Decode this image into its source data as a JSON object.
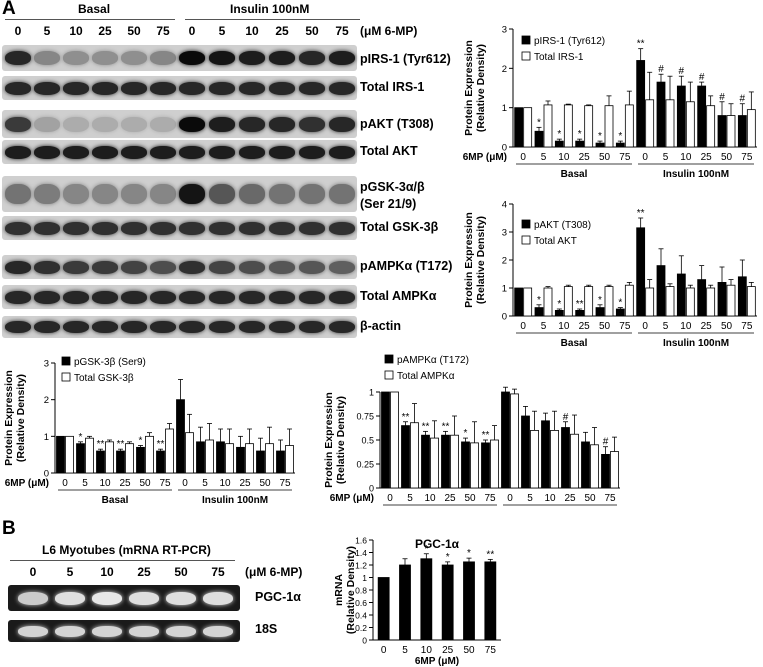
{
  "panel_a": {
    "letter": "A",
    "basal_label": "Basal",
    "insulin_label": "Insulin 100nM",
    "unit_label": "(μM 6-MP)",
    "lanes": [
      "0",
      "5",
      "10",
      "25",
      "50",
      "75",
      "0",
      "5",
      "10",
      "25",
      "50",
      "75"
    ],
    "blots": [
      {
        "label": "pIRS-1 (Tyr612)",
        "label2": "",
        "basal": [
          0.85,
          0.35,
          0.3,
          0.3,
          0.3,
          0.35
        ],
        "insulin": [
          1,
          0.95,
          0.9,
          0.9,
          0.85,
          0.9
        ]
      },
      {
        "label": "Total IRS-1",
        "label2": "",
        "basal": [
          0.85,
          0.85,
          0.85,
          0.85,
          0.85,
          0.85
        ],
        "insulin": [
          0.85,
          0.85,
          0.85,
          0.85,
          0.85,
          0.85
        ]
      },
      {
        "label": "pAKT (T308)",
        "label2": "",
        "basal": [
          0.75,
          0.2,
          0.15,
          0.15,
          0.15,
          0.15
        ],
        "insulin": [
          1,
          0.9,
          0.85,
          0.85,
          0.8,
          0.85
        ]
      },
      {
        "label": "Total AKT",
        "label2": "",
        "basal": [
          0.9,
          0.9,
          0.9,
          0.9,
          0.9,
          0.9
        ],
        "insulin": [
          0.9,
          0.9,
          0.9,
          0.9,
          0.9,
          0.9
        ]
      },
      {
        "label": "pGSK-3α/β",
        "label2": "(Ser 21/9)",
        "basal": [
          0.45,
          0.4,
          0.35,
          0.35,
          0.35,
          0.35
        ],
        "insulin": [
          0.95,
          0.6,
          0.5,
          0.45,
          0.45,
          0.45
        ]
      },
      {
        "label": "Total GSK-3β",
        "label2": "",
        "basal": [
          0.8,
          0.8,
          0.8,
          0.8,
          0.8,
          0.8
        ],
        "insulin": [
          0.8,
          0.8,
          0.8,
          0.8,
          0.8,
          0.8
        ]
      },
      {
        "label": "pAMPKα (T172)",
        "label2": "",
        "basal": [
          0.85,
          0.8,
          0.75,
          0.75,
          0.7,
          0.65
        ],
        "insulin": [
          0.8,
          0.7,
          0.65,
          0.6,
          0.6,
          0.55
        ]
      },
      {
        "label": "Total AMPKα",
        "label2": "",
        "basal": [
          0.85,
          0.85,
          0.85,
          0.85,
          0.85,
          0.85
        ],
        "insulin": [
          0.85,
          0.85,
          0.85,
          0.85,
          0.85,
          0.85
        ]
      },
      {
        "label": "β-actin",
        "label2": "",
        "basal": [
          0.85,
          0.85,
          0.85,
          0.85,
          0.85,
          0.85
        ],
        "insulin": [
          0.85,
          0.85,
          0.85,
          0.85,
          0.85,
          0.85
        ]
      }
    ]
  },
  "panel_b": {
    "letter": "B",
    "title": "L6 Myotubes (mRNA RT-PCR)",
    "unit_label": "(μM 6-MP)",
    "lanes": [
      "0",
      "5",
      "10",
      "25",
      "50",
      "75"
    ],
    "gels": [
      {
        "label": "PGC-1α",
        "intensity": [
          0.75,
          0.85,
          0.9,
          0.85,
          0.85,
          0.85
        ]
      },
      {
        "label": "18S",
        "intensity": [
          0.8,
          0.8,
          0.8,
          0.8,
          0.8,
          0.8
        ]
      }
    ]
  },
  "chart_data": [
    {
      "type": "bar",
      "ylabel": "Protein Expression (Relative Density)",
      "ylim": [
        0,
        3
      ],
      "yticks": [
        "0",
        "1",
        "2",
        "3"
      ],
      "xprefix": "6MP (μM)",
      "categories": [
        "0",
        "5",
        "10",
        "25",
        "50",
        "75",
        "0",
        "5",
        "10",
        "25",
        "50",
        "75"
      ],
      "groups": [
        "Basal",
        "Insulin 100nM"
      ],
      "legend_position": "top-right",
      "series": [
        {
          "name": "pIRS-1 (Tyr612)",
          "color": "#000000",
          "values": [
            1,
            0.4,
            0.15,
            0.15,
            0.1,
            0.1,
            2.2,
            1.65,
            1.55,
            1.55,
            0.8,
            0.8
          ],
          "errors": [
            0,
            0.1,
            0.05,
            0.05,
            0.05,
            0.05,
            0.3,
            0.2,
            0.25,
            0.1,
            0.35,
            0.3
          ]
        },
        {
          "name": "Total IRS-1",
          "color": "#ffffff",
          "values": [
            1,
            1.07,
            1.07,
            1.05,
            1.05,
            1.07,
            1.2,
            1.2,
            1.15,
            1.05,
            0.8,
            0.95
          ],
          "errors": [
            0,
            0.1,
            0.02,
            0.02,
            0.25,
            0.35,
            0.7,
            0.6,
            0.5,
            0.25,
            0.3,
            0.45
          ]
        }
      ],
      "annotations": [
        {
          "index": 1,
          "series": 0,
          "text": "*"
        },
        {
          "index": 2,
          "series": 0,
          "text": "*"
        },
        {
          "index": 3,
          "series": 0,
          "text": "*"
        },
        {
          "index": 4,
          "series": 0,
          "text": "*"
        },
        {
          "index": 5,
          "series": 0,
          "text": "*"
        },
        {
          "index": 6,
          "series": 0,
          "text": "**"
        },
        {
          "index": 7,
          "series": 0,
          "text": "#"
        },
        {
          "index": 8,
          "series": 0,
          "text": "#"
        },
        {
          "index": 9,
          "series": 0,
          "text": "#"
        },
        {
          "index": 10,
          "series": 0,
          "text": "#"
        },
        {
          "index": 11,
          "series": 0,
          "text": "#"
        }
      ]
    },
    {
      "type": "bar",
      "ylabel": "Protein Expression (Relative Density)",
      "ylim": [
        0,
        4
      ],
      "yticks": [
        "0",
        "1",
        "2",
        "3",
        "4"
      ],
      "xprefix": "",
      "categories": [
        "0",
        "5",
        "10",
        "25",
        "50",
        "75",
        "0",
        "5",
        "10",
        "25",
        "50",
        "75"
      ],
      "groups": [
        "Basal",
        "Insulin 100nM"
      ],
      "legend_position": "top-right",
      "series": [
        {
          "name": "pAKT (T308)",
          "color": "#000000",
          "values": [
            1,
            0.3,
            0.2,
            0.2,
            0.3,
            0.25,
            3.15,
            1.8,
            1.5,
            1.3,
            1.2,
            1.4
          ],
          "errors": [
            0,
            0.1,
            0.05,
            0.05,
            0.1,
            0.05,
            0.35,
            0.6,
            0.65,
            0.5,
            0.55,
            0.6
          ]
        },
        {
          "name": "Total AKT",
          "color": "#ffffff",
          "values": [
            1,
            1,
            1.05,
            1.05,
            1.05,
            1.1,
            1.0,
            1.05,
            1.0,
            1.0,
            1.1,
            1.05
          ],
          "errors": [
            0,
            0.05,
            0.05,
            0.05,
            0.05,
            0.1,
            0.3,
            0.1,
            0.1,
            0.1,
            0.2,
            0.15
          ]
        }
      ],
      "annotations": [
        {
          "index": 1,
          "series": 0,
          "text": "*"
        },
        {
          "index": 2,
          "series": 0,
          "text": "*"
        },
        {
          "index": 3,
          "series": 0,
          "text": "**"
        },
        {
          "index": 4,
          "series": 0,
          "text": "*"
        },
        {
          "index": 5,
          "series": 0,
          "text": "*"
        },
        {
          "index": 6,
          "series": 0,
          "text": "**"
        }
      ]
    },
    {
      "type": "bar",
      "ylabel": "Protein Expression (Relative Density)",
      "ylim": [
        0,
        3
      ],
      "yticks": [
        "0",
        "1",
        "2",
        "3"
      ],
      "xprefix": "6MP (μM)",
      "categories": [
        "0",
        "5",
        "10",
        "25",
        "50",
        "75",
        "0",
        "5",
        "10",
        "25",
        "50",
        "75"
      ],
      "groups": [
        "Basal",
        "Insulin 100nM"
      ],
      "legend_position": "top-left",
      "series": [
        {
          "name": "pGSK-3β (Ser9)",
          "color": "#000000",
          "values": [
            1,
            0.8,
            0.6,
            0.6,
            0.7,
            0.6,
            2.0,
            0.85,
            0.85,
            0.7,
            0.6,
            0.6
          ],
          "errors": [
            0,
            0.05,
            0.05,
            0.05,
            0.05,
            0.05,
            0.55,
            0.4,
            0.35,
            0.3,
            0.35,
            0.3
          ]
        },
        {
          "name": "Total GSK-3β",
          "color": "#ffffff",
          "values": [
            1,
            0.95,
            0.85,
            0.8,
            1.0,
            1.2,
            1.1,
            0.9,
            0.8,
            0.8,
            0.8,
            0.75
          ],
          "errors": [
            0,
            0.05,
            0.05,
            0.05,
            0.1,
            0.15,
            0.5,
            0.45,
            0.4,
            0.4,
            0.45,
            0.45
          ]
        }
      ],
      "annotations": [
        {
          "index": 1,
          "series": 0,
          "text": "*"
        },
        {
          "index": 2,
          "series": 0,
          "text": "**"
        },
        {
          "index": 3,
          "series": 0,
          "text": "**"
        },
        {
          "index": 4,
          "series": 0,
          "text": "*"
        },
        {
          "index": 5,
          "series": 0,
          "text": "**"
        }
      ]
    },
    {
      "type": "bar",
      "ylabel": "Protein Expression (Relative Density)",
      "ylim": [
        0,
        1
      ],
      "yticks": [
        "0",
        "0.25",
        "0.5",
        "0.75",
        "1"
      ],
      "xprefix": "6MP (μM)",
      "categories": [
        "0",
        "5",
        "10",
        "25",
        "50",
        "75",
        "0",
        "5",
        "10",
        "25",
        "50",
        "75"
      ],
      "groups": [
        "Basal",
        "Insulin 100nM"
      ],
      "legend_position": "top-right",
      "series": [
        {
          "name": "pAMPKα (T172)",
          "color": "#000000",
          "values": [
            1,
            0.65,
            0.55,
            0.55,
            0.48,
            0.47,
            1.0,
            0.75,
            0.7,
            0.63,
            0.48,
            0.35
          ],
          "errors": [
            0,
            0.04,
            0.04,
            0.04,
            0.04,
            0.03,
            0.05,
            0.1,
            0.08,
            0.06,
            0.1,
            0.08
          ]
        },
        {
          "name": "Total AMPKα",
          "color": "#ffffff",
          "values": [
            1,
            0.68,
            0.52,
            0.55,
            0.47,
            0.5,
            0.98,
            0.6,
            0.6,
            0.56,
            0.45,
            0.38
          ],
          "errors": [
            0,
            0.2,
            0.18,
            0.2,
            0.22,
            0.15,
            0.05,
            0.2,
            0.2,
            0.2,
            0.18,
            0.15
          ]
        }
      ],
      "annotations": [
        {
          "index": 1,
          "series": 0,
          "text": "**"
        },
        {
          "index": 2,
          "series": 0,
          "text": "**"
        },
        {
          "index": 3,
          "series": 0,
          "text": "**"
        },
        {
          "index": 4,
          "series": 0,
          "text": "*"
        },
        {
          "index": 5,
          "series": 0,
          "text": "**"
        },
        {
          "index": 9,
          "series": 0,
          "text": "#"
        },
        {
          "index": 11,
          "series": 0,
          "text": "#"
        }
      ]
    },
    {
      "type": "bar",
      "title": "PGC-1α",
      "ylabel": "mRNA (Relative Density)",
      "xlabel": "6MP (μM)",
      "ylim": [
        0,
        1.6
      ],
      "yticks": [
        "0",
        "0.2",
        "0.4",
        "0.6",
        "0.8",
        "1",
        "1.2",
        "1.4",
        "1.6"
      ],
      "categories": [
        "0",
        "5",
        "10",
        "25",
        "50",
        "75"
      ],
      "series": [
        {
          "name": "",
          "color": "#000000",
          "values": [
            1,
            1.2,
            1.3,
            1.2,
            1.25,
            1.25
          ],
          "errors": [
            0,
            0.1,
            0.08,
            0.05,
            0.06,
            0.04
          ]
        }
      ],
      "annotations": [
        {
          "index": 2,
          "series": 0,
          "text": "*"
        },
        {
          "index": 3,
          "series": 0,
          "text": "*"
        },
        {
          "index": 4,
          "series": 0,
          "text": "*"
        },
        {
          "index": 5,
          "series": 0,
          "text": "**"
        }
      ]
    }
  ]
}
